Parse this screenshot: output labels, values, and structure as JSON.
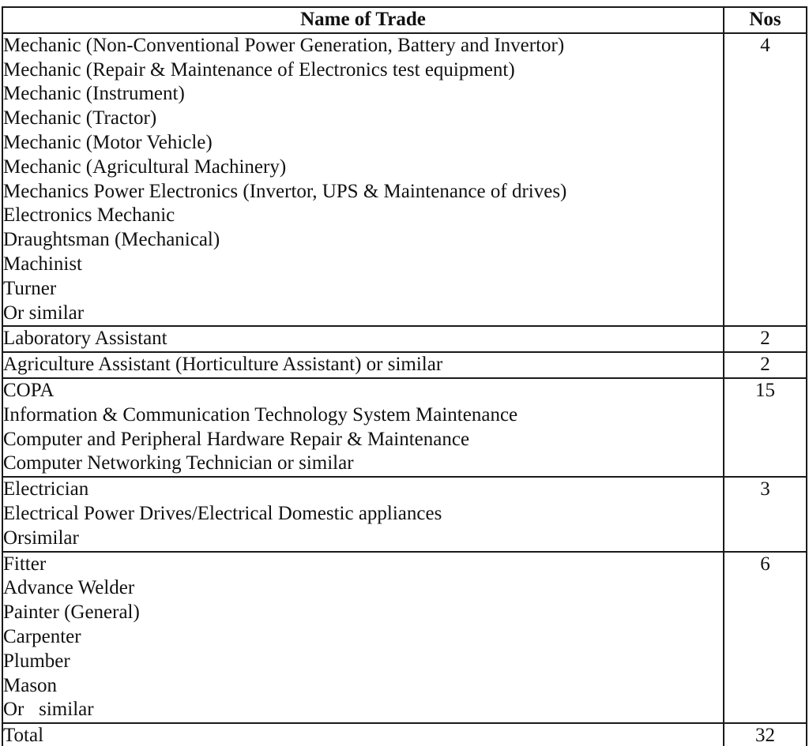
{
  "colors": {
    "background": "#ffffff",
    "text": "#111111",
    "border": "#1a1a1a"
  },
  "table": {
    "header": {
      "trade": "Name of Trade",
      "nos": "Nos"
    },
    "rows": [
      {
        "lines": [
          "Mechanic (Non-Conventional Power Generation, Battery and Invertor)",
          "Mechanic (Repair & Maintenance of Electronics test equipment)",
          "Mechanic (Instrument)",
          "Mechanic (Tractor)",
          "Mechanic (Motor Vehicle)",
          "Mechanic (Agricultural Machinery)",
          "Mechanics Power Electronics (Invertor, UPS & Maintenance of drives)",
          "Electronics Mechanic",
          "Draughtsman (Mechanical)",
          "Machinist",
          "Turner",
          "Or similar"
        ],
        "nos": "4"
      },
      {
        "lines": [
          "Laboratory Assistant"
        ],
        "nos": "2"
      },
      {
        "lines": [
          "Agriculture Assistant (Horticulture Assistant) or similar"
        ],
        "nos": "2"
      },
      {
        "lines": [
          "COPA",
          "Information & Communication Technology System Maintenance",
          "Computer and Peripheral Hardware Repair & Maintenance",
          "Computer Networking Technician or similar"
        ],
        "nos": "15"
      },
      {
        "lines": [
          "Electrician",
          "Electrical Power Drives/Electrical Domestic appliances",
          "Orsimilar"
        ],
        "nos": "3"
      },
      {
        "lines": [
          "Fitter",
          "Advance Welder",
          "Painter (General)",
          "Carpenter",
          "Plumber",
          "Mason",
          "Or   similar"
        ],
        "nos": "6"
      },
      {
        "lines": [
          "Total"
        ],
        "nos": "32"
      }
    ]
  }
}
